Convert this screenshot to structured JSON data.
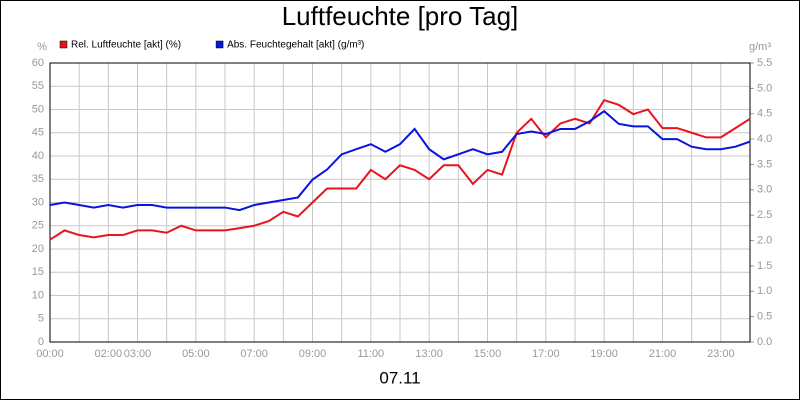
{
  "chart_data": {
    "type": "line",
    "title": "Luftfeuchte [pro Tag]",
    "xlabel": "07.11",
    "ylabel": "%",
    "y2label": "g/m³",
    "x": [
      0,
      0.5,
      1,
      1.5,
      2,
      2.5,
      3,
      3.5,
      4,
      4.5,
      5,
      5.5,
      6,
      6.5,
      7,
      7.5,
      8,
      8.5,
      9,
      9.5,
      10,
      10.5,
      11,
      11.5,
      12,
      12.5,
      13,
      13.5,
      14,
      14.5,
      15,
      15.5,
      16,
      16.5,
      17,
      17.5,
      18,
      18.5,
      19,
      19.5,
      20,
      20.5,
      21,
      21.5,
      22,
      22.5,
      23,
      23.5,
      24
    ],
    "series": [
      {
        "name": "Rel. Luftfeuchte [akt] (%)",
        "color": "#e8141e",
        "values": [
          22,
          24,
          23,
          22.5,
          23,
          23,
          24,
          24,
          23.5,
          25,
          24,
          24,
          24,
          24.5,
          25,
          26,
          28,
          27,
          30,
          33,
          33,
          33,
          37,
          35,
          38,
          37,
          35,
          38,
          38,
          34,
          37,
          36,
          45,
          48,
          44,
          47,
          48,
          47,
          52,
          51,
          49,
          50,
          46,
          46,
          45,
          44,
          44,
          46,
          48
        ]
      },
      {
        "name": "Abs. Feuchtegehalt [akt] (g/m³)",
        "color": "#0a14dc",
        "axis": "y2",
        "values": [
          2.7,
          2.75,
          2.7,
          2.65,
          2.7,
          2.65,
          2.7,
          2.7,
          2.65,
          2.65,
          2.65,
          2.65,
          2.65,
          2.6,
          2.7,
          2.75,
          2.8,
          2.85,
          3.2,
          3.4,
          3.7,
          3.8,
          3.9,
          3.75,
          3.9,
          4.2,
          3.8,
          3.6,
          3.7,
          3.8,
          3.7,
          3.75,
          4.1,
          4.15,
          4.1,
          4.2,
          4.2,
          4.35,
          4.55,
          4.3,
          4.25,
          4.25,
          4.0,
          4.0,
          3.85,
          3.8,
          3.8,
          3.85,
          3.95
        ]
      }
    ],
    "xlim": [
      0,
      24
    ],
    "xticks": [
      {
        "value": 0,
        "label": "00:00"
      },
      {
        "value": 2,
        "label": "02:00"
      },
      {
        "value": 3,
        "label": "03:00"
      },
      {
        "value": 5,
        "label": "05:00"
      },
      {
        "value": 7,
        "label": "07:00"
      },
      {
        "value": 9,
        "label": "09:00"
      },
      {
        "value": 11,
        "label": "11:00"
      },
      {
        "value": 13,
        "label": "13:00"
      },
      {
        "value": 15,
        "label": "15:00"
      },
      {
        "value": 17,
        "label": "17:00"
      },
      {
        "value": 19,
        "label": "19:00"
      },
      {
        "value": 21,
        "label": "21:00"
      },
      {
        "value": 23,
        "label": "23:00"
      }
    ],
    "minor_xticks": [
      1,
      4,
      6,
      8,
      10,
      12,
      14,
      16,
      18,
      20,
      22,
      24
    ],
    "ylim": [
      0,
      60
    ],
    "yticks": [
      0,
      5,
      10,
      15,
      20,
      25,
      30,
      35,
      40,
      45,
      50,
      55,
      60
    ],
    "y2lim": [
      0,
      5.5
    ],
    "y2ticks": [
      {
        "value": 0,
        "label": "0.0"
      },
      0.5,
      {
        "value": 1,
        "label": "1.0"
      },
      1.5,
      {
        "value": 2,
        "label": "2.0"
      },
      2.5,
      {
        "value": 3,
        "label": "3.0"
      },
      3.5,
      {
        "value": 4,
        "label": "4.0"
      },
      4.5,
      {
        "value": 5,
        "label": "5.0"
      },
      5.5
    ],
    "grid": true
  }
}
